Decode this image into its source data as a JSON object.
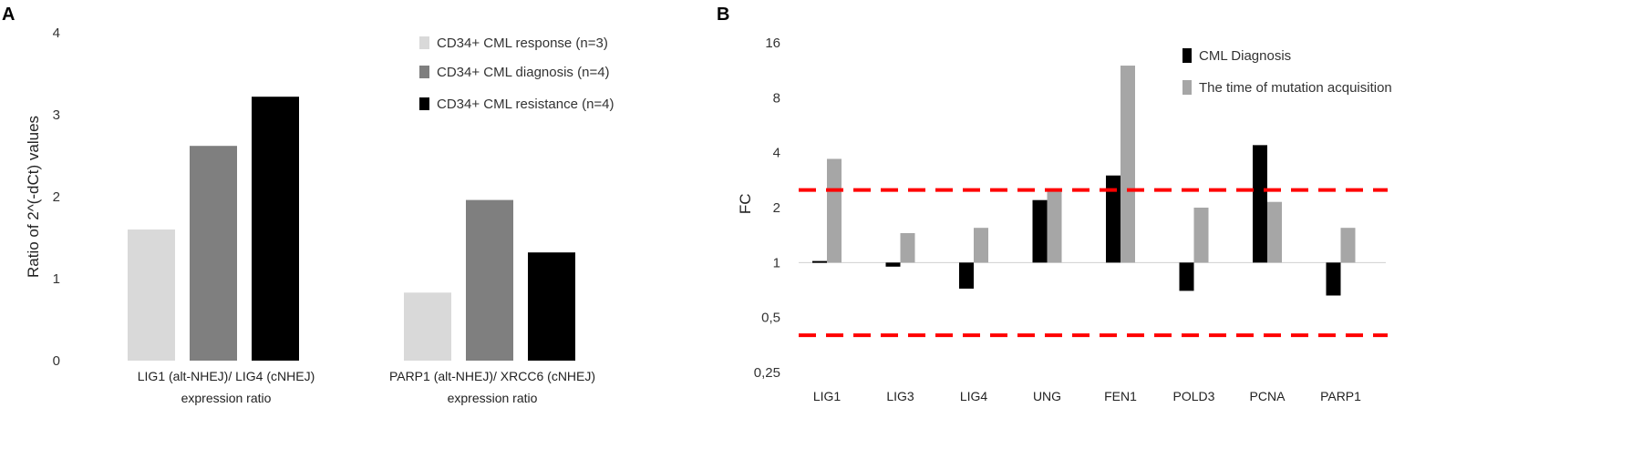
{
  "chart_data": [
    {
      "panel": "A",
      "type": "bar",
      "title": "",
      "ylabel": "Ratio of 2^(-dCt) values",
      "ylim": [
        0,
        4
      ],
      "yticks": [
        "0",
        "1",
        "2",
        "3",
        "4"
      ],
      "categories": [
        {
          "line1": "LIG1 (alt-NHEJ)/ LIG4 (cNHEJ)",
          "line2": "expression ratio"
        },
        {
          "line1": "PARP1 (alt-NHEJ)/ XRCC6 (cNHEJ)",
          "line2": "expression ratio"
        }
      ],
      "series": [
        {
          "name": "CD34+ CML response (n=3)",
          "color": "#d9d9d9",
          "values": [
            1.6,
            0.83
          ]
        },
        {
          "name": "CD34+ CML diagnosis (n=4)",
          "color": "#7f7f7f",
          "values": [
            2.62,
            1.96
          ]
        },
        {
          "name": "CD34+ CML resistance (n=4)",
          "color": "#000000",
          "values": [
            3.22,
            1.32
          ]
        }
      ]
    },
    {
      "panel": "B",
      "type": "bar",
      "title": "",
      "ylabel": "FC",
      "yscale": "log2",
      "ylim": [
        0.25,
        16
      ],
      "yticks": [
        {
          "value": 16,
          "label": "16"
        },
        {
          "value": 8,
          "label": "8"
        },
        {
          "value": 4,
          "label": "4"
        },
        {
          "value": 2,
          "label": "2"
        },
        {
          "value": 1,
          "label": "1"
        },
        {
          "value": 0.5,
          "label": "0,5"
        },
        {
          "value": 0.25,
          "label": "0,25"
        }
      ],
      "baseline": 1,
      "thresholds": [
        2.5,
        0.4
      ],
      "threshold_color": "#ff0000",
      "categories": [
        "LIG1",
        "LIG3",
        "LIG4",
        "UNG",
        "FEN1",
        "POLD3",
        "PCNA",
        "PARP1"
      ],
      "series": [
        {
          "name": "CML Diagnosis",
          "color": "#000000",
          "values": [
            1.02,
            0.95,
            0.72,
            2.2,
            3.0,
            0.7,
            4.4,
            0.66
          ]
        },
        {
          "name": "The time of mutation acquisition",
          "color": "#a6a6a6",
          "values": [
            3.7,
            1.45,
            1.55,
            2.5,
            12.0,
            2.0,
            2.15,
            1.55
          ]
        }
      ]
    }
  ]
}
